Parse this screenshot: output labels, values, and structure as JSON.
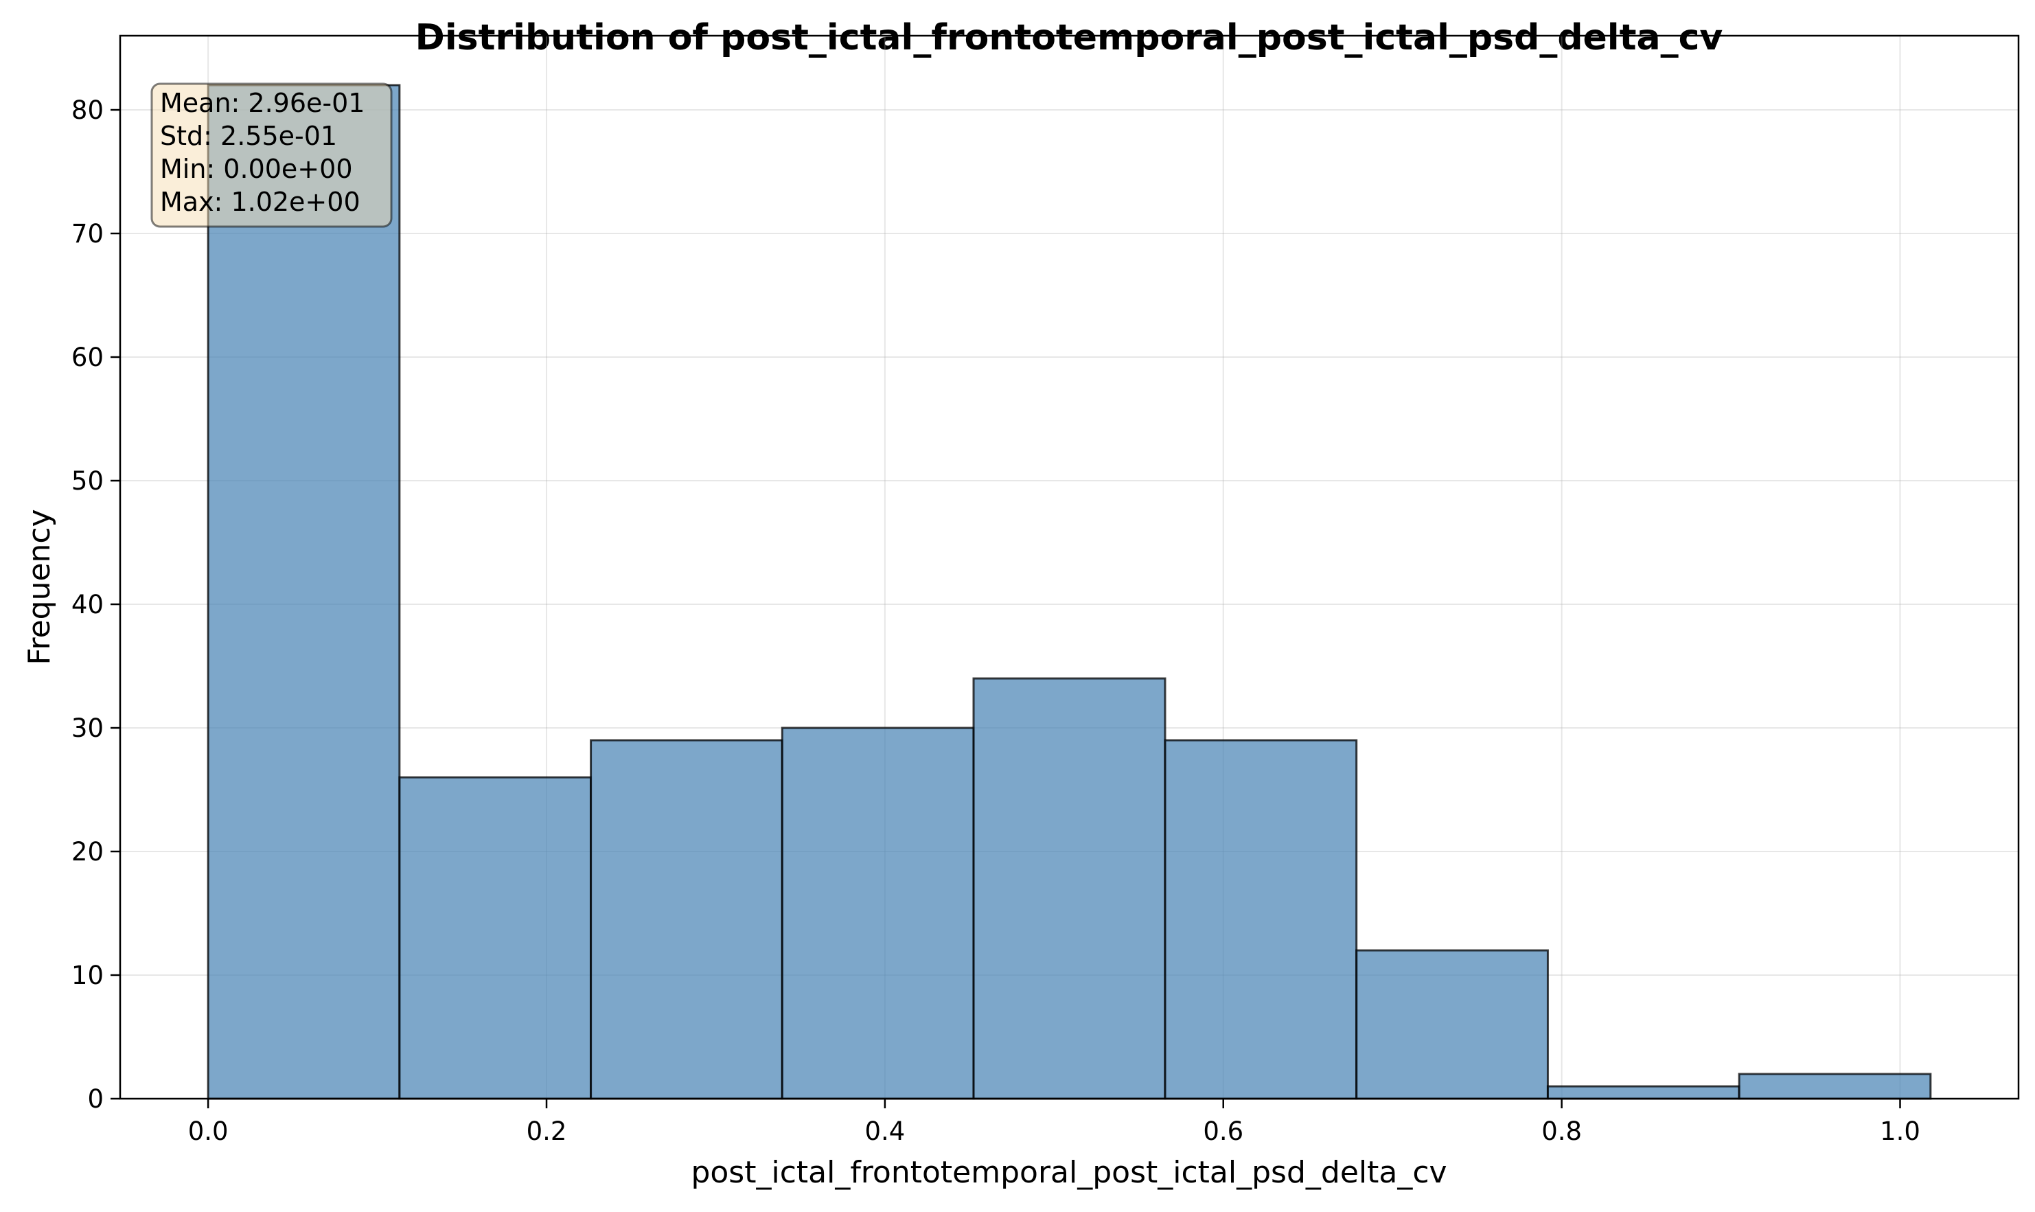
{
  "chart_data": {
    "type": "bar",
    "subtype": "histogram",
    "title": "Distribution of post_ictal_frontotemporal_post_ictal_psd_delta_cv",
    "xlabel": "post_ictal_frontotemporal_post_ictal_psd_delta_cv",
    "ylabel": "Frequency",
    "bin_edges": [
      0.0,
      0.1131,
      0.2262,
      0.3393,
      0.4524,
      0.5656,
      0.6787,
      0.7918,
      0.9049,
      1.018
    ],
    "values": [
      82,
      26,
      29,
      30,
      34,
      29,
      12,
      1,
      2
    ],
    "xlim": [
      -0.052,
      1.07
    ],
    "ylim": [
      0,
      86
    ],
    "xticks": [
      {
        "value": 0.0,
        "label": "0.0"
      },
      {
        "value": 0.2,
        "label": "0.2"
      },
      {
        "value": 0.4,
        "label": "0.4"
      },
      {
        "value": 0.6,
        "label": "0.6"
      },
      {
        "value": 0.8,
        "label": "0.8"
      },
      {
        "value": 1.0,
        "label": "1.0"
      }
    ],
    "yticks": [
      {
        "value": 0,
        "label": "0"
      },
      {
        "value": 10,
        "label": "10"
      },
      {
        "value": 20,
        "label": "20"
      },
      {
        "value": 30,
        "label": "30"
      },
      {
        "value": 40,
        "label": "40"
      },
      {
        "value": 50,
        "label": "50"
      },
      {
        "value": 60,
        "label": "60"
      },
      {
        "value": 70,
        "label": "70"
      },
      {
        "value": 80,
        "label": "80"
      }
    ],
    "grid": true,
    "bar_color": "#4682b4",
    "bar_opacity": 0.7,
    "bar_edge_color": "#000000",
    "stats_box": {
      "lines": [
        "Mean: 2.96e-01",
        "Std: 2.55e-01",
        "Min: 0.00e+00",
        "Max: 1.02e+00"
      ],
      "background": "#f5deb3",
      "placement": "top-left"
    }
  }
}
